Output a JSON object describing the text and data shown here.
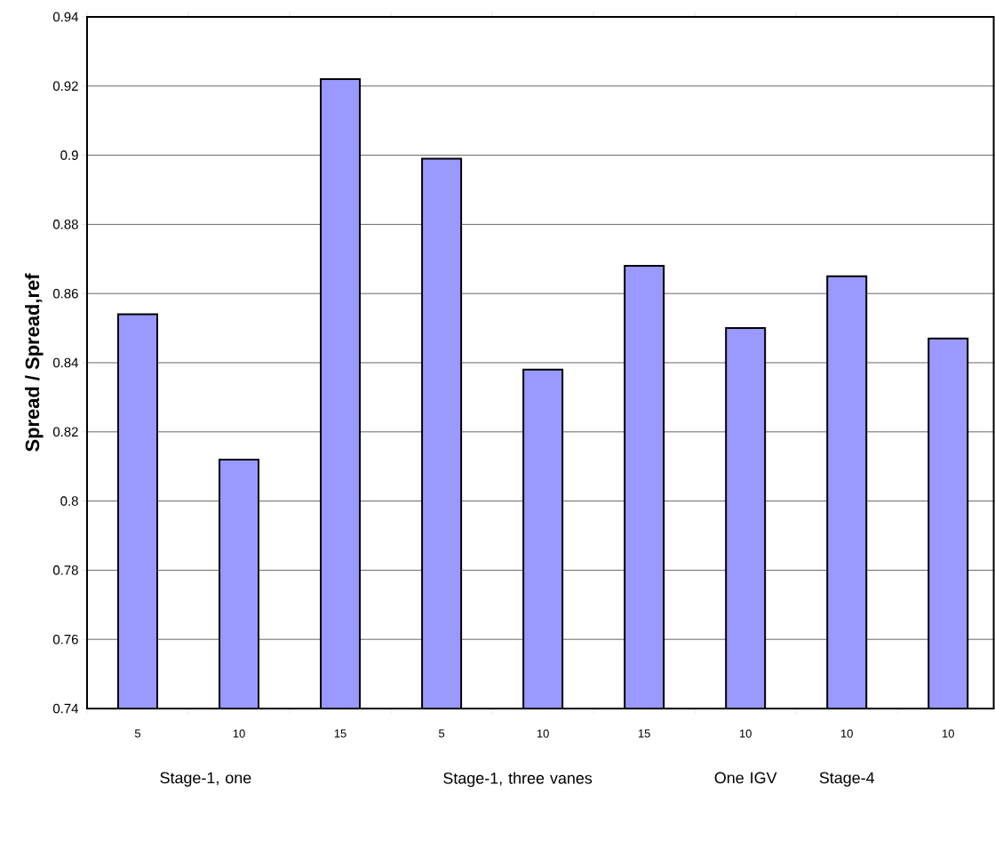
{
  "chart_data": {
    "type": "bar",
    "ylabel": "Spread / Spread,ref",
    "categories": [
      "5",
      "10",
      "15",
      "5",
      "10",
      "15",
      "10",
      "10",
      "10"
    ],
    "values": [
      0.854,
      0.812,
      0.922,
      0.899,
      0.838,
      0.868,
      0.85,
      0.865,
      0.847
    ],
    "color": "#9999ff",
    "ylim": [
      0.74,
      0.94
    ],
    "yticks": [
      0.74,
      0.76,
      0.78,
      0.8,
      0.82,
      0.84,
      0.86,
      0.88,
      0.9,
      0.92,
      0.94
    ],
    "grid": "y",
    "annotations": [
      "Stage-1, one",
      "Stage-1, three vanes",
      "One IGV",
      "Stage-4"
    ]
  }
}
